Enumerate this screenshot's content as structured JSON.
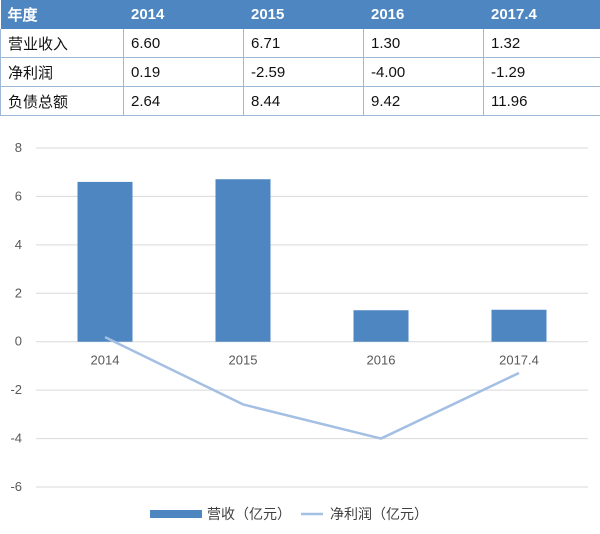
{
  "table": {
    "headers": [
      "年度",
      "2014",
      "2015",
      "2016",
      "2017.4"
    ],
    "rows": [
      [
        "营业收入",
        "6.60",
        "6.71",
        "1.30",
        "1.32"
      ],
      [
        "净利润",
        "0.19",
        "-2.59",
        "-4.00",
        "-1.29"
      ],
      [
        "负债总额",
        "2.64",
        "8.44",
        "9.42",
        "11.96"
      ]
    ]
  },
  "colors": {
    "bar": "#4e86c2",
    "line": "#a3bfe3",
    "header_bg": "#4e86c2",
    "grid": "#d9d9d9"
  },
  "chart_data": {
    "type": "bar",
    "categories": [
      "2014",
      "2015",
      "2016",
      "2017.4"
    ],
    "series": [
      {
        "name": "营收（亿元）",
        "kind": "bar",
        "values": [
          6.6,
          6.71,
          1.3,
          1.32
        ]
      },
      {
        "name": "净利润（亿元）",
        "kind": "line",
        "values": [
          0.19,
          -2.59,
          -4.0,
          -1.29
        ]
      }
    ],
    "ylim": [
      -6,
      8
    ],
    "yticks": [
      8,
      6,
      4,
      2,
      0,
      -2,
      -4,
      -6
    ],
    "grid": true,
    "legend": "bottom-center",
    "title": "",
    "xlabel": "",
    "ylabel": ""
  }
}
